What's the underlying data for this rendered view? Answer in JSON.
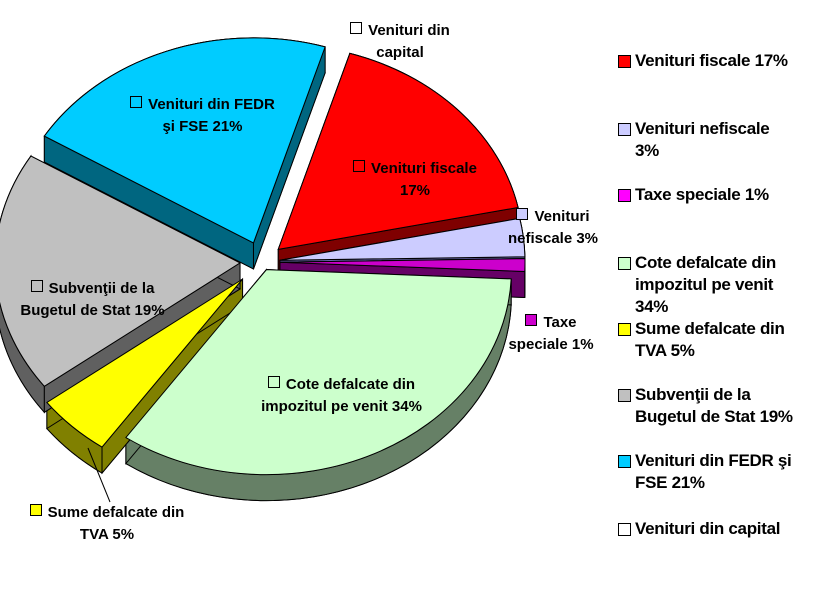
{
  "chart_data": {
    "type": "pie",
    "slices": [
      {
        "label": "Venituri fiscale",
        "value": 17,
        "color": "#FF0000",
        "side": "#7F0000",
        "slice_label": "Venituri fiscale 17%",
        "legend_label": "Venituri fiscale 17%"
      },
      {
        "label": "Venituri nefiscale",
        "value": 3,
        "color": "#CCCCFF",
        "side": "#6666AA",
        "slice_label": "Venituri nefiscale 3%",
        "legend_label": "Venituri nefiscale 3%"
      },
      {
        "label": "Taxe speciale",
        "value": 1,
        "color": "#CC00CC",
        "side": "#660066",
        "slice_label": "Taxe speciale 1%",
        "legend_label": "Taxe speciale 1%"
      },
      {
        "label": "Cote defalcate din impozitul pe venit",
        "value": 34,
        "color": "#CCFFCC",
        "side": "#668066",
        "slice_label": "Cote defalcate din impozitul pe venit 34%",
        "legend_label": "Cote defalcate din impozitul pe venit 34%"
      },
      {
        "label": "Sume defalcate din TVA",
        "value": 5,
        "color": "#FFFF00",
        "side": "#808000",
        "slice_label": "Sume defalcate din TVA 5%",
        "legend_label": "Sume defalcate din TVA 5%"
      },
      {
        "label": "Subvenţii de la Bugetul de Stat",
        "value": 19,
        "color": "#C0C0C0",
        "side": "#606060",
        "slice_label": "Subvenţii de la Bugetul de Stat 19%",
        "legend_label": "Subvenţii de la Bugetul de Stat 19%"
      },
      {
        "label": "Venituri din FEDR şi FSE",
        "value": 21,
        "color": "#00CCFF",
        "side": "#006680",
        "slice_label": "Venituri din FEDR şi FSE 21%",
        "legend_label": "Venituri din FEDR şi FSE 21%"
      },
      {
        "label": "Venituri din capital",
        "value": 0,
        "color": "#FFFFFF",
        "side": "#FFFFFF",
        "slice_label": "Venituri din capital",
        "legend_label": "Venituri din capital"
      }
    ],
    "legend_position": "right"
  }
}
